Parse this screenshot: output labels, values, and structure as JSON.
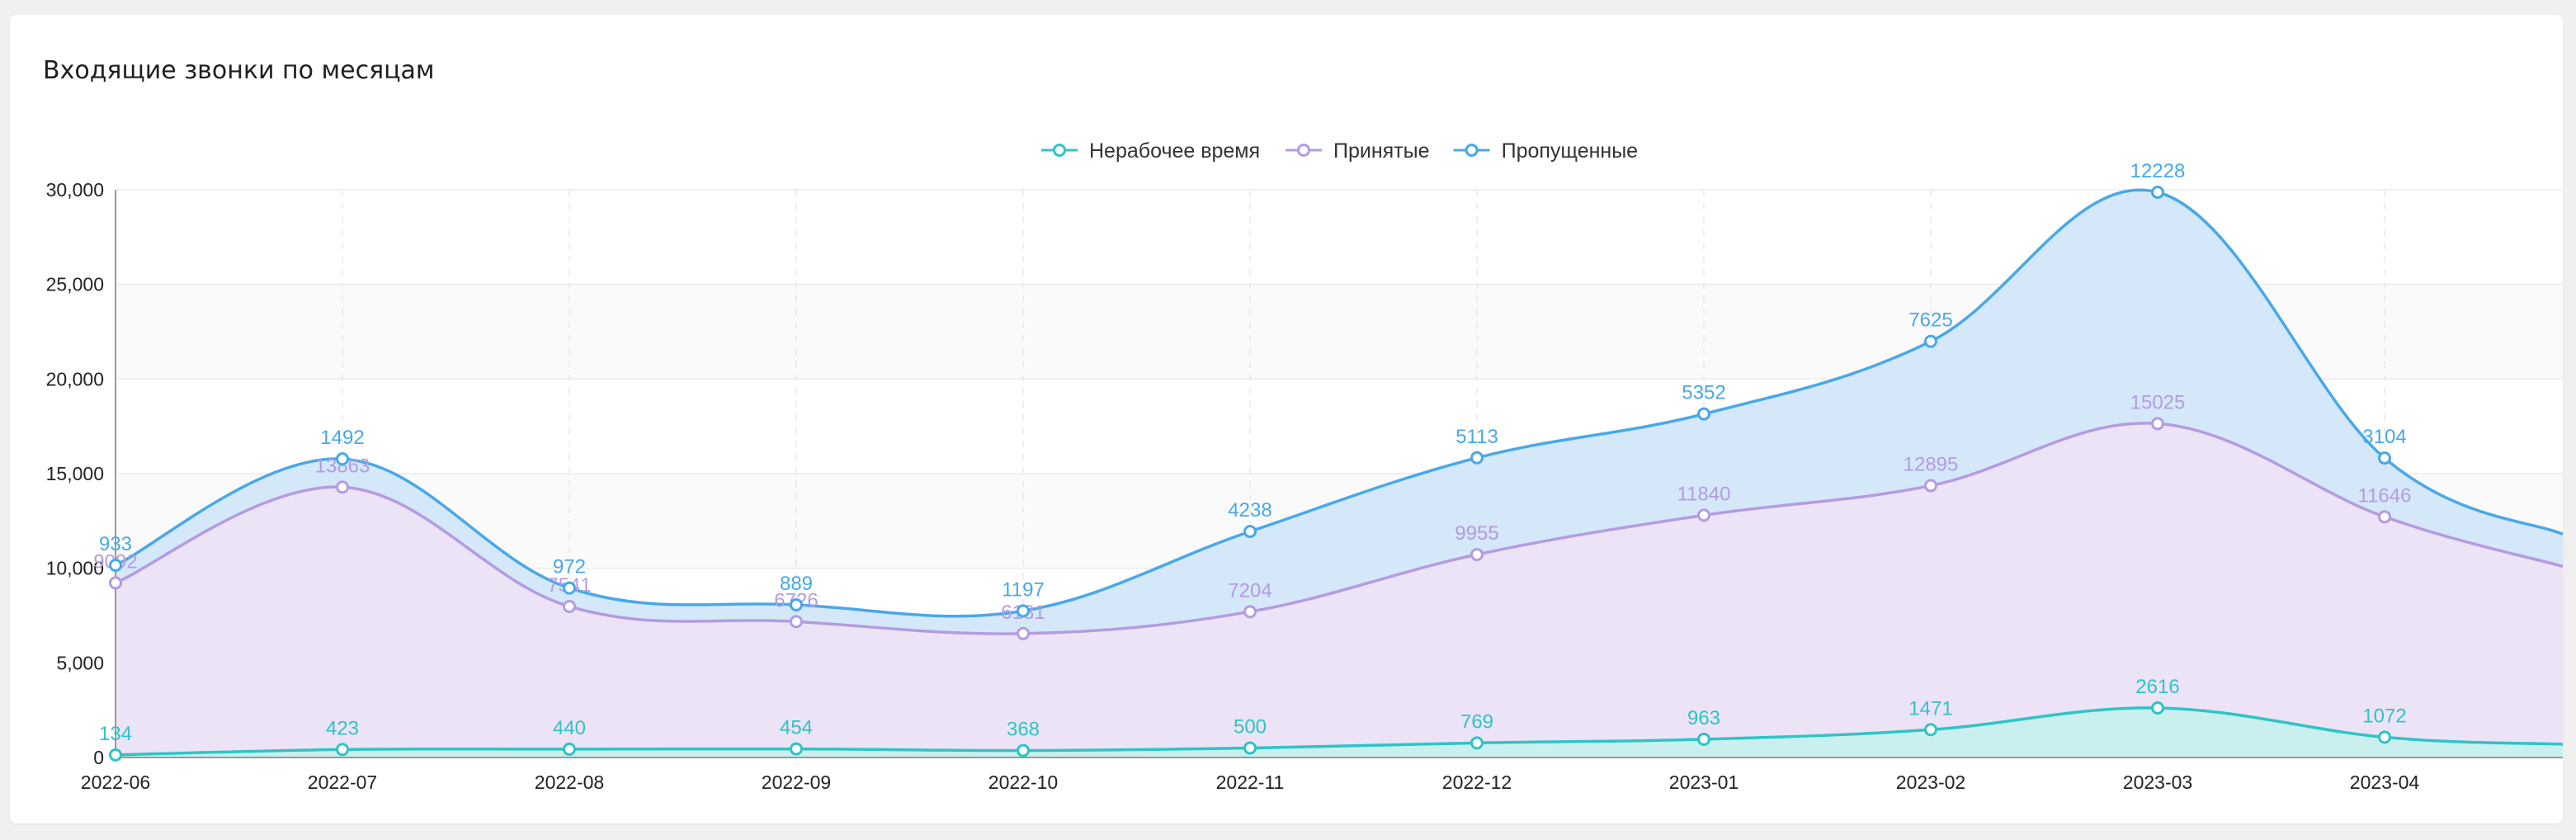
{
  "card": {
    "title": "Входящие звонки по месяцам"
  },
  "chart_data": {
    "type": "area",
    "categories": [
      "2022-06",
      "2022-07",
      "2022-08",
      "2022-09",
      "2022-10",
      "2022-11",
      "2022-12",
      "2023-01",
      "2023-02",
      "2023-03",
      "2023-04"
    ],
    "yticks": [
      "0",
      "5,000",
      "10,000",
      "15,000",
      "20,000",
      "25,000",
      "30,000"
    ],
    "ylim": [
      0,
      30000
    ],
    "stacked": true,
    "legend_position": "top-center",
    "grid": true,
    "series": [
      {
        "name": "Нерабочее время",
        "color": "#2ec4c6",
        "values": [
          134,
          423,
          440,
          454,
          368,
          500,
          769,
          963,
          1471,
          2616,
          1072
        ],
        "trailing_value": 700
      },
      {
        "name": "Принятые",
        "color": "#b59be0",
        "values": [
          9092,
          13863,
          7541,
          6726,
          6181,
          7204,
          9955,
          11840,
          12895,
          15025,
          11646
        ],
        "trailing_value": 9400
      },
      {
        "name": "Пропущенные",
        "color": "#48a8e8",
        "values": [
          933,
          1492,
          972,
          889,
          1197,
          4238,
          5113,
          5352,
          7625,
          12228,
          3104
        ],
        "trailing_value": 1700
      }
    ]
  }
}
